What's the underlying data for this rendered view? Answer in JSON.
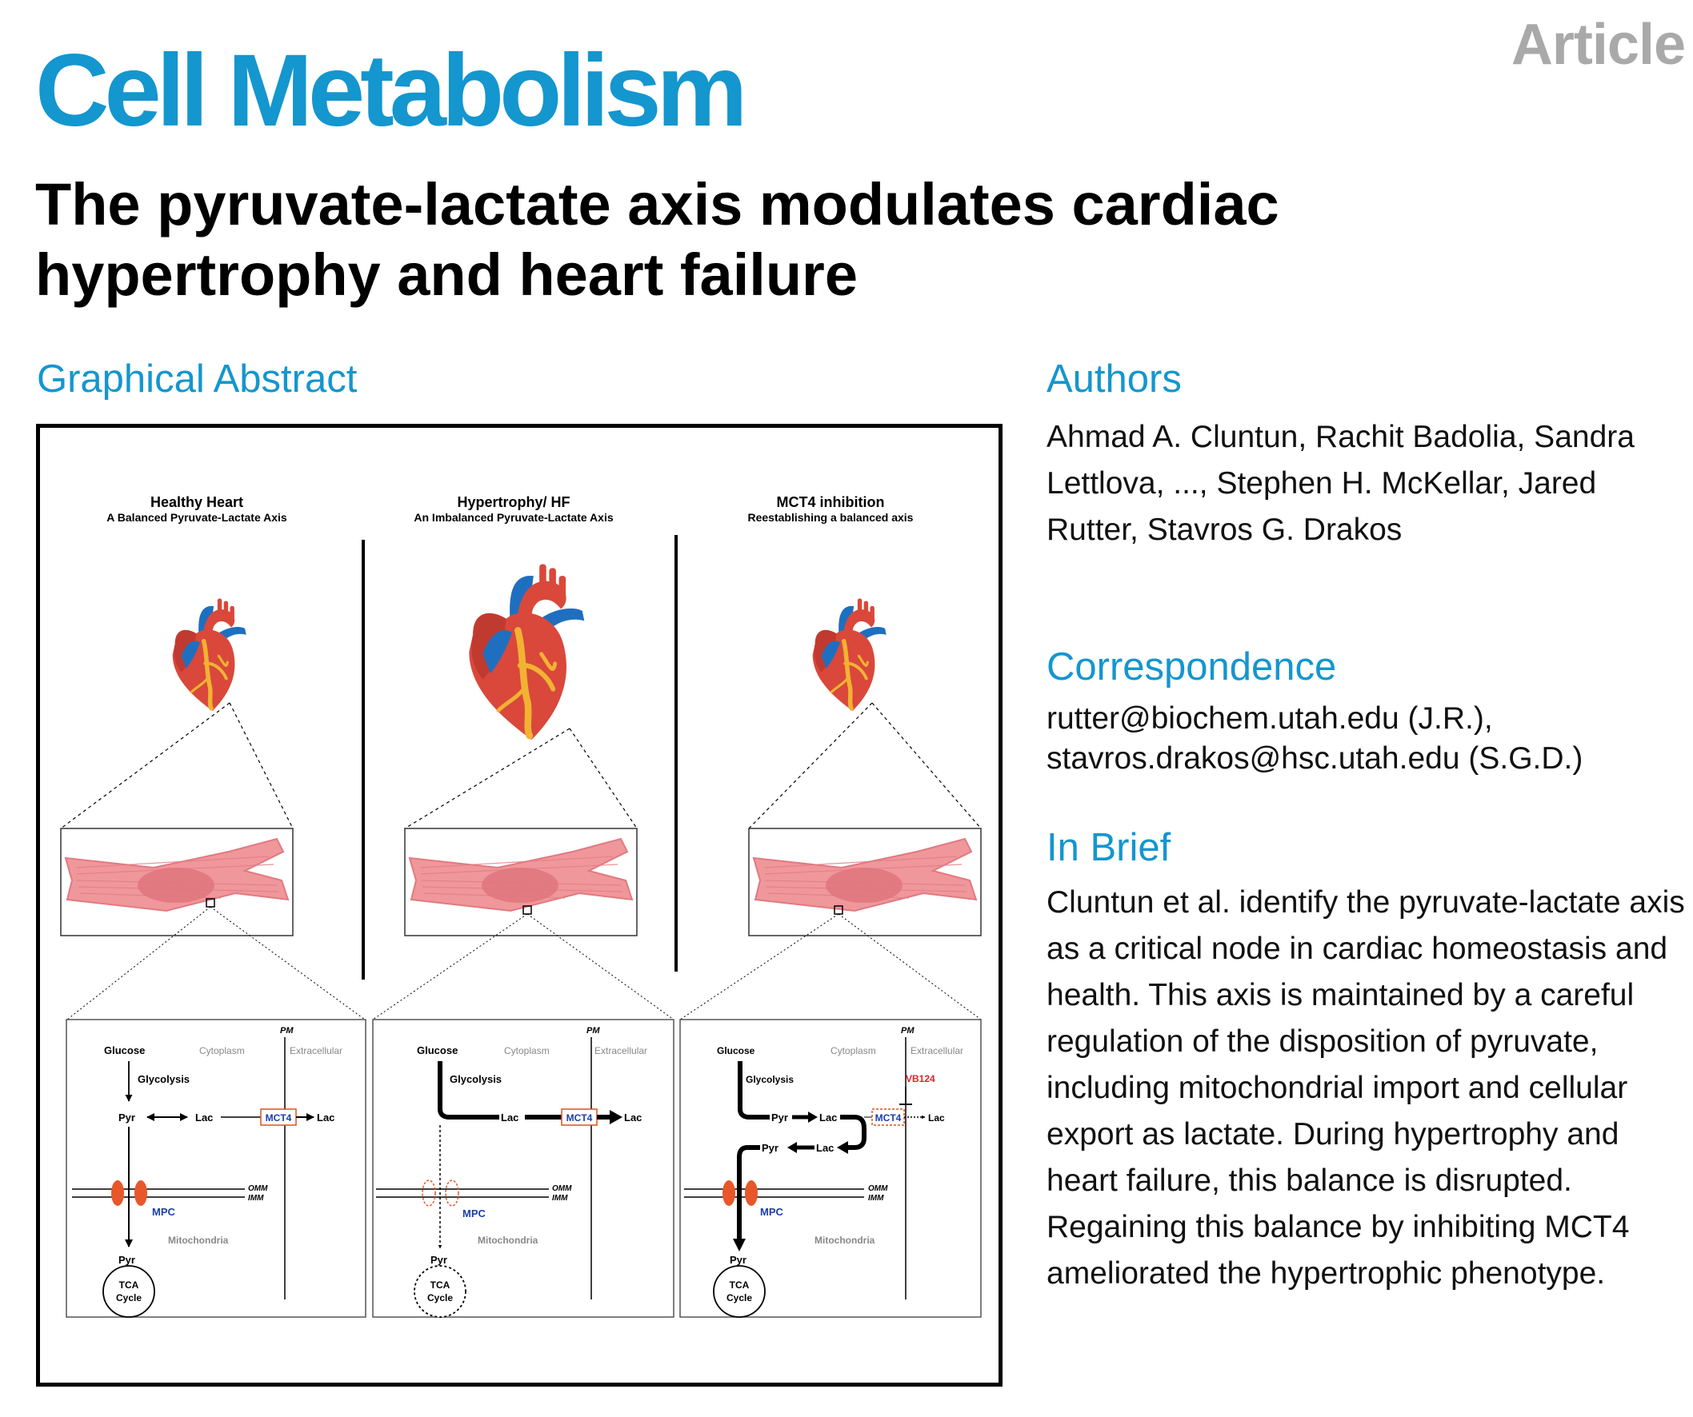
{
  "header": {
    "journal": "Cell Metabolism",
    "article_type": "Article"
  },
  "article": {
    "title": "The pyruvate-lactate axis modulates cardiac hypertrophy and heart failure"
  },
  "sections": {
    "graphical_abstract": "Graphical Abstract",
    "authors": "Authors",
    "correspondence": "Correspondence",
    "in_brief": "In Brief"
  },
  "authors_text": "Ahmad A. Cluntun, Rachit Badolia, Sandra Lettlova, ..., Stephen H. McKellar, Jared Rutter, Stavros G. Drakos",
  "correspondence_text": "rutter@biochem.utah.edu (J.R.), stavros.drakos@hsc.utah.edu (S.G.D.)",
  "in_brief_text": "Cluntun et al. identify the pyruvate-lactate axis as a critical node in cardiac homeostasis and health. This axis is maintained by a careful regulation of the disposition of pyruvate, including mitochondrial import and cellular export as lactate. During hypertrophy and heart failure, this balance is disrupted. Regaining this balance by inhibiting MCT4 ameliorated the hypertrophic phenotype.",
  "abstract_figure": {
    "panels": [
      {
        "title": "Healthy Heart",
        "subtitle": "A Balanced Pyruvate-Lactate Axis"
      },
      {
        "title": "Hypertrophy/ HF",
        "subtitle": "An Imbalanced Pyruvate-Lactate Axis"
      },
      {
        "title": "MCT4 inhibition",
        "subtitle": "Reestablishing a balanced axis"
      }
    ],
    "labels": {
      "glucose": "Glucose",
      "cytoplasm": "Cytoplasm",
      "extracellular": "Extracellular",
      "pm": "PM",
      "glycolysis": "Glycolysis",
      "pyr": "Pyr",
      "lac": "Lac",
      "mct4": "MCT4",
      "omm": "OMM",
      "imm": "IMM",
      "mpc": "MPC",
      "mitochondria": "Mitochondria",
      "tca_line1": "TCA",
      "tca_line2": "Cycle",
      "inhibitor": "VB124"
    },
    "colors": {
      "mct4_text": "#1b3fa8",
      "mct4_box": "#d9541f",
      "mpc_protein": "#e8572a",
      "inhibitor": "#d62728",
      "cell": "#f0979b",
      "heart": "#d9483b",
      "aorta": "#1f6fc0"
    }
  }
}
